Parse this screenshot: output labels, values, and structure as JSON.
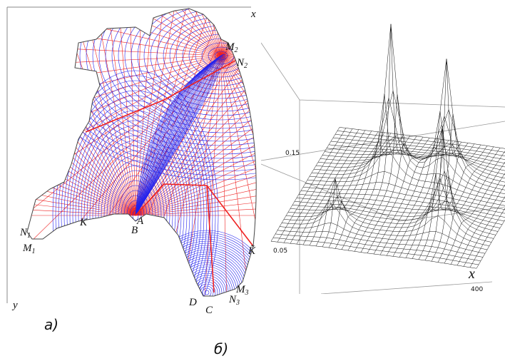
{
  "panel_a": {
    "axis_x": "x",
    "axis_y": "y",
    "caption": "а)",
    "points": [
      {
        "label": "M",
        "sub": "2"
      },
      {
        "label": "N",
        "sub": "2"
      },
      {
        "label": "N",
        "sub": "1"
      },
      {
        "label": "M",
        "sub": "1"
      },
      {
        "label": "K",
        "sub": ""
      },
      {
        "label": "B",
        "sub": ""
      },
      {
        "label": "A",
        "sub": ""
      },
      {
        "label": "K̃",
        "sub": ""
      },
      {
        "label": "D",
        "sub": ""
      },
      {
        "label": "C",
        "sub": ""
      },
      {
        "label": "M",
        "sub": "3"
      },
      {
        "label": "N",
        "sub": "3"
      }
    ]
  },
  "panel_b": {
    "caption": "б)",
    "z_labels": [
      "0.15",
      "0.05"
    ],
    "axis_x": "x",
    "x_tick": "400"
  }
}
